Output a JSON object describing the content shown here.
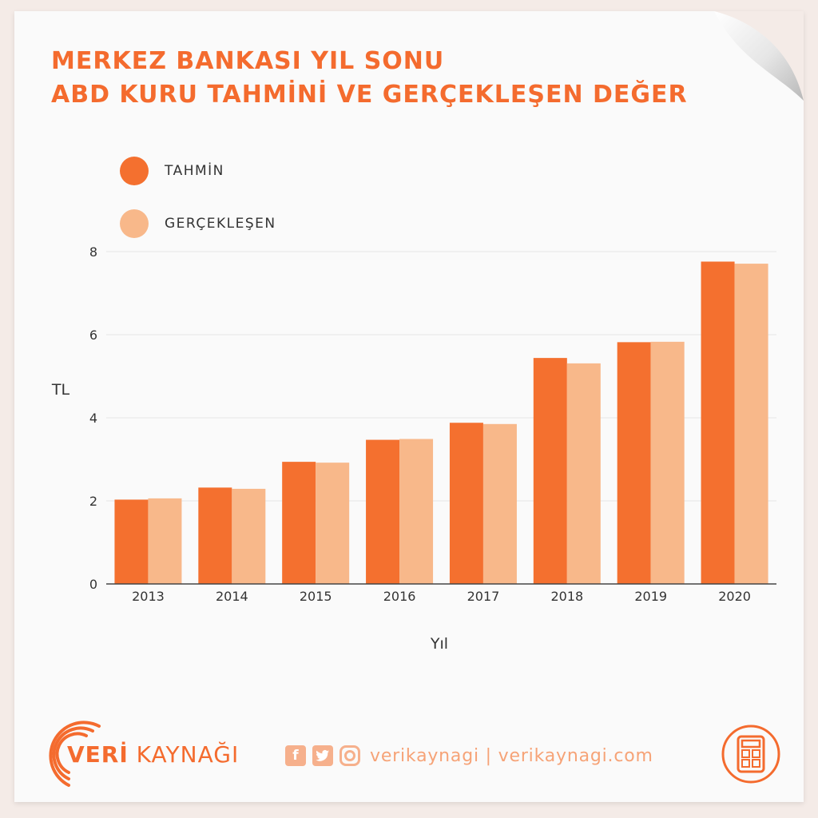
{
  "title": {
    "line1": "MERKEZ BANKASI YIL SONU",
    "line2": "ABD KURU TAHMİNİ VE GERÇEKLEŞEN DEĞER"
  },
  "colors": {
    "accent": "#f46b2e",
    "tahmin": "#f4702f",
    "gerceklesen": "#f8b88a"
  },
  "legend": [
    {
      "label": "TAHMİN",
      "color": "#f4702f"
    },
    {
      "label": "GERÇEKLEŞEN",
      "color": "#f8b88a"
    }
  ],
  "chart_data": {
    "type": "bar",
    "categories": [
      "2013",
      "2014",
      "2015",
      "2016",
      "2017",
      "2018",
      "2019",
      "2020"
    ],
    "series": [
      {
        "name": "TAHMİN",
        "values": [
          2.03,
          2.32,
          2.94,
          3.47,
          3.88,
          5.44,
          5.82,
          7.76
        ]
      },
      {
        "name": "GERÇEKLEŞEN",
        "values": [
          2.06,
          2.29,
          2.92,
          3.49,
          3.85,
          5.31,
          5.83,
          7.71
        ]
      }
    ],
    "xlabel": "Yıl",
    "ylabel": "TL",
    "ylim": [
      0,
      8
    ],
    "yticks": [
      0,
      2,
      4,
      6,
      8
    ],
    "grid": true,
    "legend_position": "top-left"
  },
  "footer": {
    "brand_bold": "VERİ",
    "brand_rest": " KAYNAĞI",
    "social_text": "verikaynagi | verikaynagi.com",
    "icons": [
      "facebook-icon",
      "twitter-icon",
      "instagram-icon",
      "calculator-icon"
    ]
  }
}
